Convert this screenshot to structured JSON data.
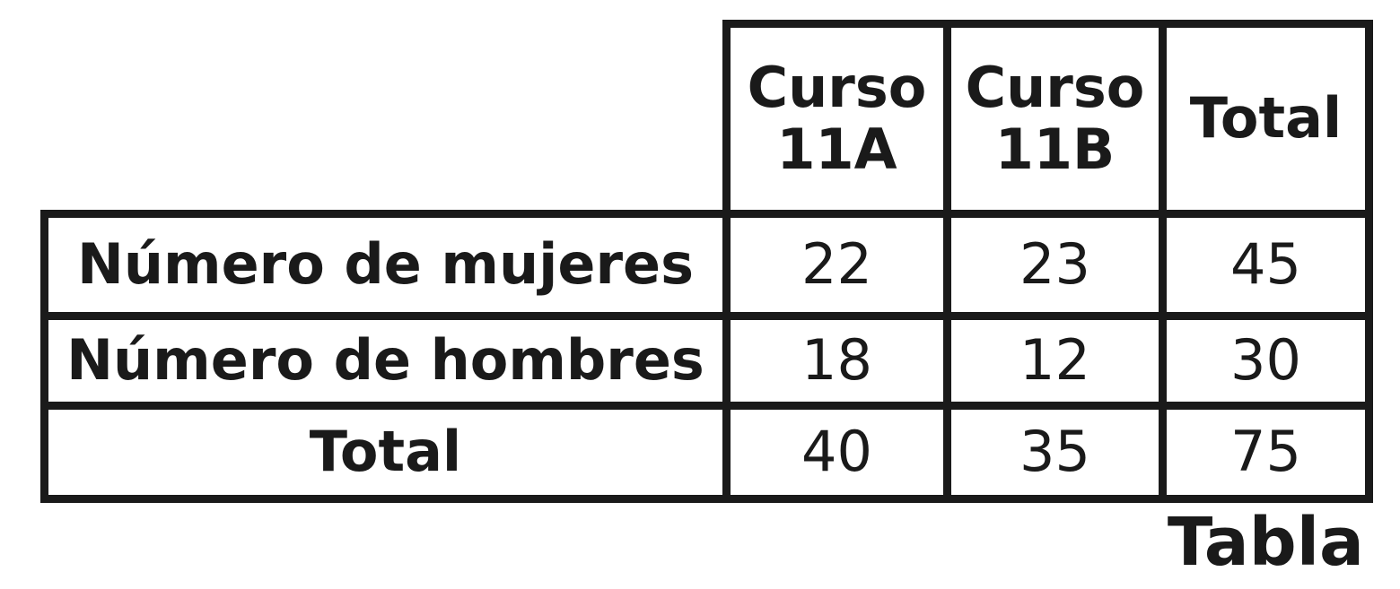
{
  "table": {
    "columns": [
      {
        "line1": "Curso",
        "line2": "11A"
      },
      {
        "line1": "Curso",
        "line2": "11B"
      },
      {
        "line1": "Total",
        "line2": ""
      }
    ],
    "rows": [
      {
        "label": "Número de mujeres",
        "values": [
          "22",
          "23",
          "45"
        ]
      },
      {
        "label": "Número de hombres",
        "values": [
          "18",
          "12",
          "30"
        ]
      },
      {
        "label": "Total",
        "values": [
          "40",
          "35",
          "75"
        ]
      }
    ]
  },
  "caption": "Tabla"
}
